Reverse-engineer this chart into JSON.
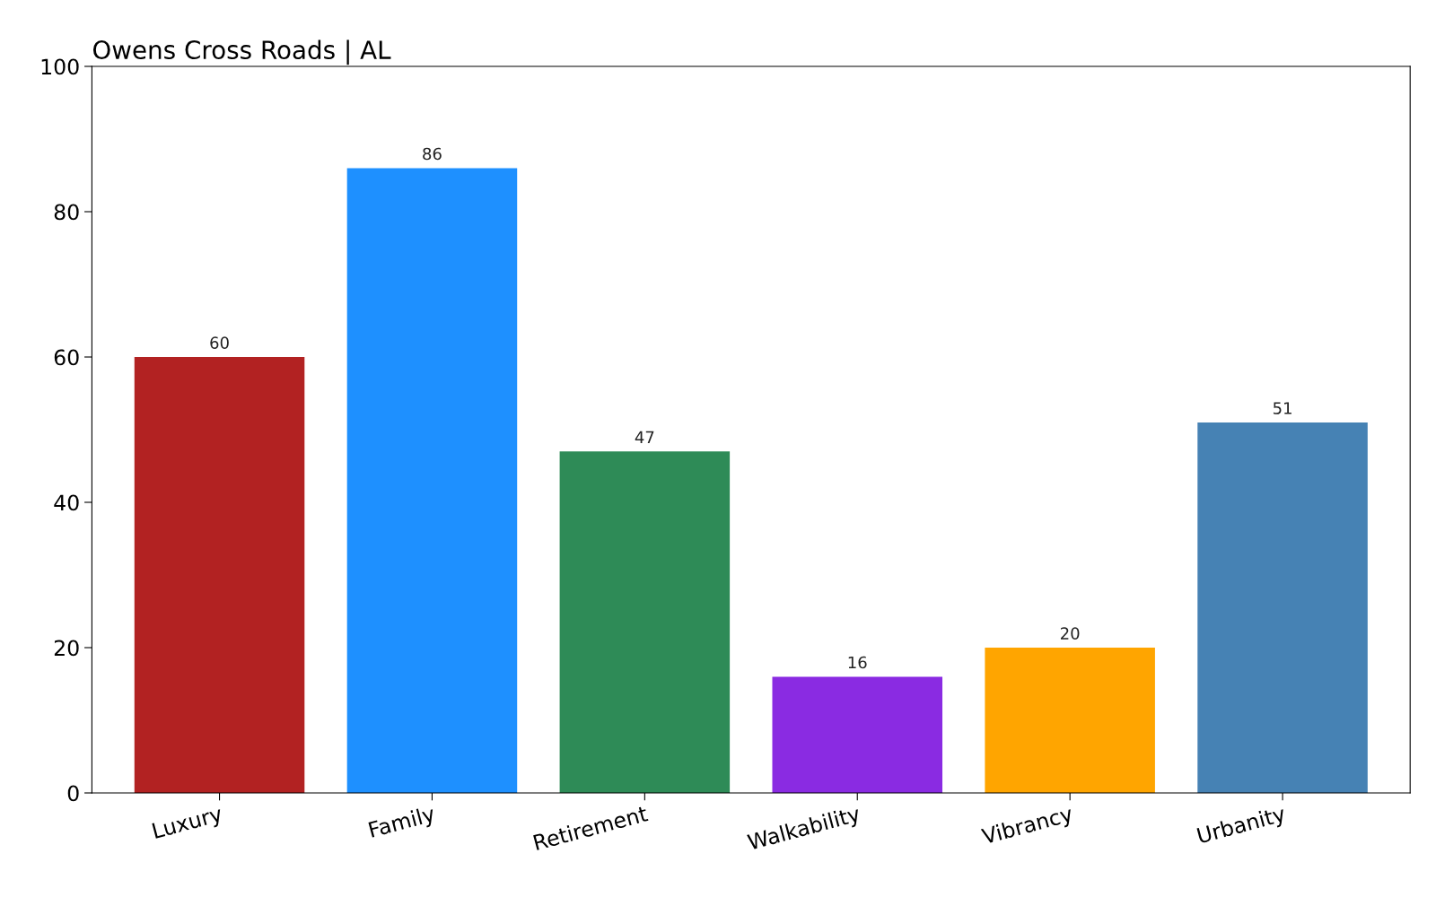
{
  "chart_data": {
    "type": "bar",
    "title": "Owens Cross Roads | AL",
    "categories": [
      "Luxury",
      "Family",
      "Retirement",
      "Walkability",
      "Vibrancy",
      "Urbanity"
    ],
    "values": [
      60,
      86,
      47,
      16,
      20,
      51
    ],
    "colors": [
      "#b22222",
      "#1e90ff",
      "#2e8b57",
      "#8a2be2",
      "#ffa500",
      "#4682b4"
    ],
    "ylim": [
      0,
      100
    ],
    "yticks": [
      0,
      20,
      40,
      60,
      80,
      100
    ],
    "data_labels": true,
    "grid": false,
    "legend": false
  }
}
